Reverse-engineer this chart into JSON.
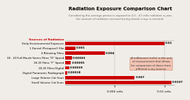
{
  "title": "Radiation Exposure Comparison Chart",
  "subtitle": "Considering the average person is exposed to 2.0 - 4.5 mSv radiation a year,\nthe amount of radiation received during dental x-rays is minimal.",
  "xlabel_left": "0.005 mSv",
  "xlabel_right": "0.01 mSv",
  "left_label": "Sources of Radiation",
  "categories": [
    "Daily Environmental Exposure",
    "1 Dental (Periapical) Film",
    "4 Bitewing Films",
    "18 - 20 Full Mouth Series Films \"D\" Speed",
    "18-20 Films \"F\" Speed",
    "18-20 Films Digital",
    "Digital Panoramic Radiograph",
    "Large Volume Cat Scan",
    "Small Volume Cat Scan"
  ],
  "values": [
    0.01,
    0.001,
    0.004,
    0.00065,
    0.00055,
    0.00039,
    0.00018,
    0.007,
    0.0107
  ],
  "bar_labels": [
    "0.01",
    "0.001",
    "0.004",
    "0.00065",
    "0.00055",
    "0.00039",
    "0.00018",
    "0.007",
    "0.0107"
  ],
  "bar_color": "#cc0000",
  "label_color_red": "#cc0000",
  "background_color": "#f0ede8",
  "annotation_text": "A millisievert (mSv) is the unit\nof measurement that allows\nfor comparison of doses from\ndifferent x-ray sources.",
  "annotation_box_color": "#f2c4b4",
  "annotation_edge_color": "#d4927a",
  "xlim_max": 0.011,
  "title_fontsize": 5.0,
  "subtitle_fontsize": 2.8,
  "cat_fontsize": 2.9,
  "bar_label_fontsize": 3.0,
  "axis_tick_fontsize": 3.2
}
